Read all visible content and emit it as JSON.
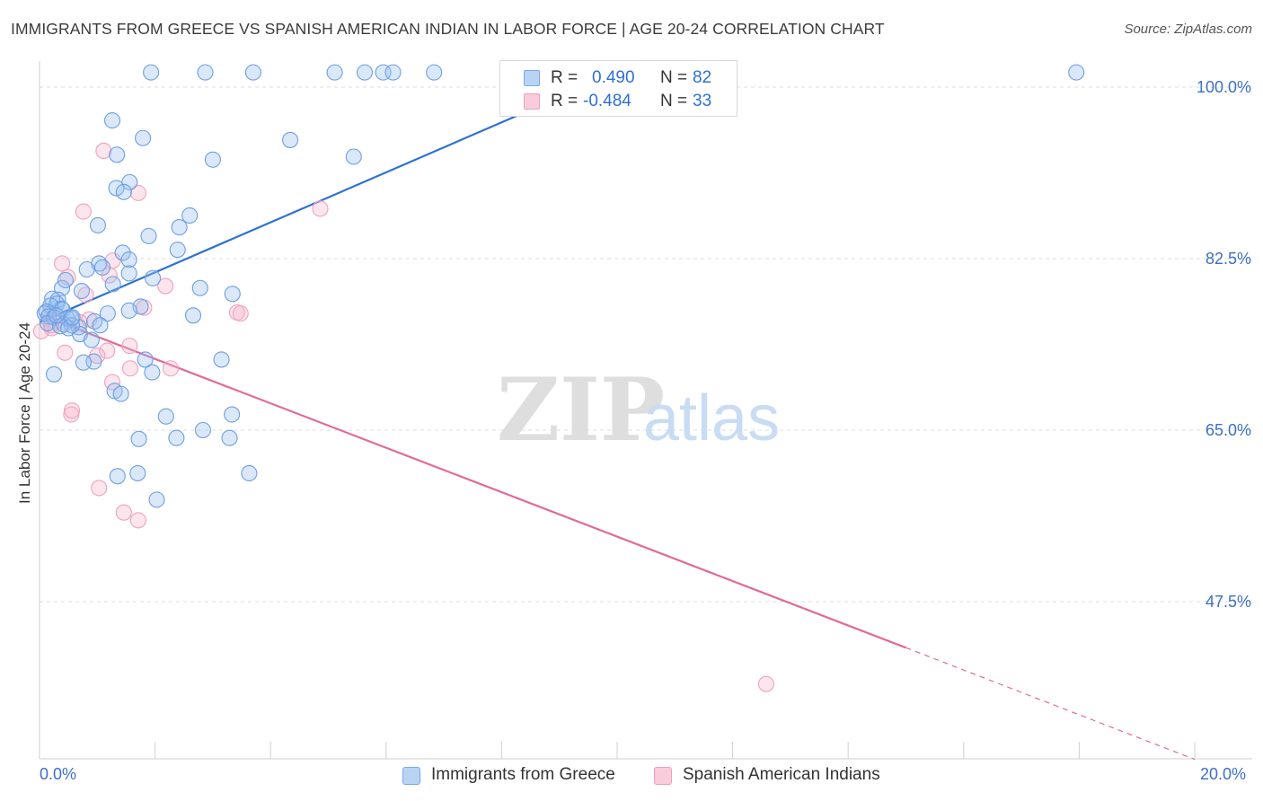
{
  "title": "IMMIGRANTS FROM GREECE VS SPANISH AMERICAN INDIAN IN LABOR FORCE | AGE 20-24 CORRELATION CHART",
  "source": "Source: ZipAtlas.com",
  "watermark": {
    "zip": "ZIP",
    "atlas": "atlas"
  },
  "legend": {
    "r_label": "R =",
    "n_label": "N =",
    "series": [
      {
        "r": "0.490",
        "n": "82"
      },
      {
        "r": "-0.484",
        "n": "33"
      }
    ]
  },
  "bottom_legend": [
    "Immigrants from Greece",
    "Spanish American Indians"
  ],
  "x_axis": {
    "min_label": "0.0%",
    "max_label": "20.0%"
  },
  "colors": {
    "blue": "#6fa3e8",
    "pink": "#f0a0bc",
    "blue_line": "#2f72d0",
    "pink_line": "#e06a98",
    "tick_text": "#3d6fc7"
  },
  "chart_data": {
    "type": "scatter",
    "title": "IMMIGRANTS FROM GREECE VS SPANISH AMERICAN INDIAN IN LABOR FORCE | AGE 20-24 CORRELATION CHART",
    "xlabel": "",
    "ylabel": "In Labor Force | Age 20-24",
    "xlim": [
      0,
      20
    ],
    "ylim": [
      30,
      101.5
    ],
    "y_ticks": [
      47.5,
      65.0,
      82.5,
      100.0
    ],
    "y_tick_labels": [
      "47.5%",
      "65.0%",
      "82.5%",
      "100.0%"
    ],
    "grid": "horizontal dashed",
    "series": [
      {
        "name": "Immigrants from Greece",
        "color": "#6fa3e8",
        "points": [
          [
            1.93,
            101.5
          ],
          [
            2.87,
            101.5
          ],
          [
            3.7,
            101.5
          ],
          [
            5.11,
            101.5
          ],
          [
            5.63,
            101.5
          ],
          [
            5.95,
            101.5
          ],
          [
            6.12,
            101.5
          ],
          [
            6.83,
            101.5
          ],
          [
            17.95,
            101.5
          ],
          [
            1.26,
            96.6
          ],
          [
            1.79,
            94.8
          ],
          [
            1.34,
            93.1
          ],
          [
            3.0,
            92.6
          ],
          [
            4.34,
            94.6
          ],
          [
            5.44,
            92.9
          ],
          [
            1.56,
            90.3
          ],
          [
            1.33,
            89.7
          ],
          [
            1.89,
            84.8
          ],
          [
            1.01,
            85.9
          ],
          [
            2.6,
            86.9
          ],
          [
            2.42,
            85.7
          ],
          [
            1.44,
            83.1
          ],
          [
            2.39,
            83.4
          ],
          [
            1.03,
            82.0
          ],
          [
            1.55,
            82.4
          ],
          [
            0.82,
            81.4
          ],
          [
            1.09,
            81.6
          ],
          [
            1.55,
            81.0
          ],
          [
            1.27,
            79.9
          ],
          [
            2.78,
            79.5
          ],
          [
            0.39,
            79.5
          ],
          [
            0.73,
            79.2
          ],
          [
            3.34,
            78.9
          ],
          [
            0.22,
            78.4
          ],
          [
            0.32,
            78.3
          ],
          [
            0.3,
            77.9
          ],
          [
            0.38,
            77.4
          ],
          [
            0.19,
            77.7
          ],
          [
            0.4,
            77.3
          ],
          [
            0.12,
            77.1
          ],
          [
            0.09,
            76.9
          ],
          [
            0.16,
            76.6
          ],
          [
            0.25,
            76.5
          ],
          [
            0.48,
            76.4
          ],
          [
            0.55,
            76.4
          ],
          [
            0.42,
            75.8
          ],
          [
            0.14,
            75.9
          ],
          [
            0.95,
            76.1
          ],
          [
            0.68,
            75.5
          ],
          [
            0.7,
            74.8
          ],
          [
            0.56,
            75.7
          ],
          [
            1.18,
            76.9
          ],
          [
            1.75,
            77.6
          ],
          [
            1.55,
            77.2
          ],
          [
            2.66,
            76.7
          ],
          [
            0.9,
            74.2
          ],
          [
            0.94,
            72.0
          ],
          [
            0.76,
            71.9
          ],
          [
            1.83,
            72.2
          ],
          [
            1.95,
            70.9
          ],
          [
            3.15,
            72.2
          ],
          [
            1.3,
            69.0
          ],
          [
            1.41,
            68.7
          ],
          [
            2.19,
            66.4
          ],
          [
            3.33,
            66.6
          ],
          [
            2.83,
            65.0
          ],
          [
            1.72,
            64.1
          ],
          [
            2.37,
            64.2
          ],
          [
            3.29,
            64.2
          ],
          [
            1.35,
            60.3
          ],
          [
            1.7,
            60.6
          ],
          [
            2.03,
            57.9
          ],
          [
            3.63,
            60.6
          ],
          [
            0.25,
            70.7
          ],
          [
            1.46,
            89.3
          ],
          [
            1.05,
            75.7
          ],
          [
            0.36,
            75.6
          ],
          [
            0.5,
            75.4
          ],
          [
            0.57,
            76.5
          ],
          [
            0.29,
            76.7
          ],
          [
            1.96,
            80.5
          ],
          [
            0.45,
            80.3
          ]
        ]
      },
      {
        "name": "Spanish American Indians",
        "color": "#f0a0bc",
        "points": [
          [
            1.11,
            93.5
          ],
          [
            1.71,
            89.2
          ],
          [
            0.76,
            87.3
          ],
          [
            4.86,
            87.6
          ],
          [
            1.27,
            82.3
          ],
          [
            0.39,
            82.0
          ],
          [
            0.49,
            80.6
          ],
          [
            1.21,
            80.8
          ],
          [
            0.8,
            78.8
          ],
          [
            2.18,
            79.7
          ],
          [
            1.81,
            77.5
          ],
          [
            3.42,
            77.0
          ],
          [
            3.48,
            76.9
          ],
          [
            0.03,
            75.1
          ],
          [
            0.21,
            75.4
          ],
          [
            0.27,
            76.1
          ],
          [
            0.7,
            76.0
          ],
          [
            0.86,
            76.3
          ],
          [
            0.17,
            76.8
          ],
          [
            1.17,
            73.1
          ],
          [
            1.56,
            73.6
          ],
          [
            0.44,
            72.9
          ],
          [
            1.0,
            72.6
          ],
          [
            1.57,
            71.3
          ],
          [
            2.27,
            71.3
          ],
          [
            1.26,
            69.9
          ],
          [
            0.55,
            66.6
          ],
          [
            0.56,
            67.0
          ],
          [
            1.03,
            59.1
          ],
          [
            1.46,
            56.6
          ],
          [
            1.71,
            55.8
          ],
          [
            12.58,
            39.1
          ],
          [
            0.2,
            75.7
          ]
        ]
      }
    ],
    "trendlines": [
      {
        "series": "Immigrants from Greece",
        "x": [
          0.0,
          10.0
        ],
        "y": [
          76.0,
          101.5
        ]
      },
      {
        "series": "Spanish American Indians",
        "x": [
          0.0,
          15.0,
          20.0
        ],
        "y": [
          76.8,
          42.8,
          31.4
        ],
        "dashed_from_x": 15.0
      }
    ]
  }
}
